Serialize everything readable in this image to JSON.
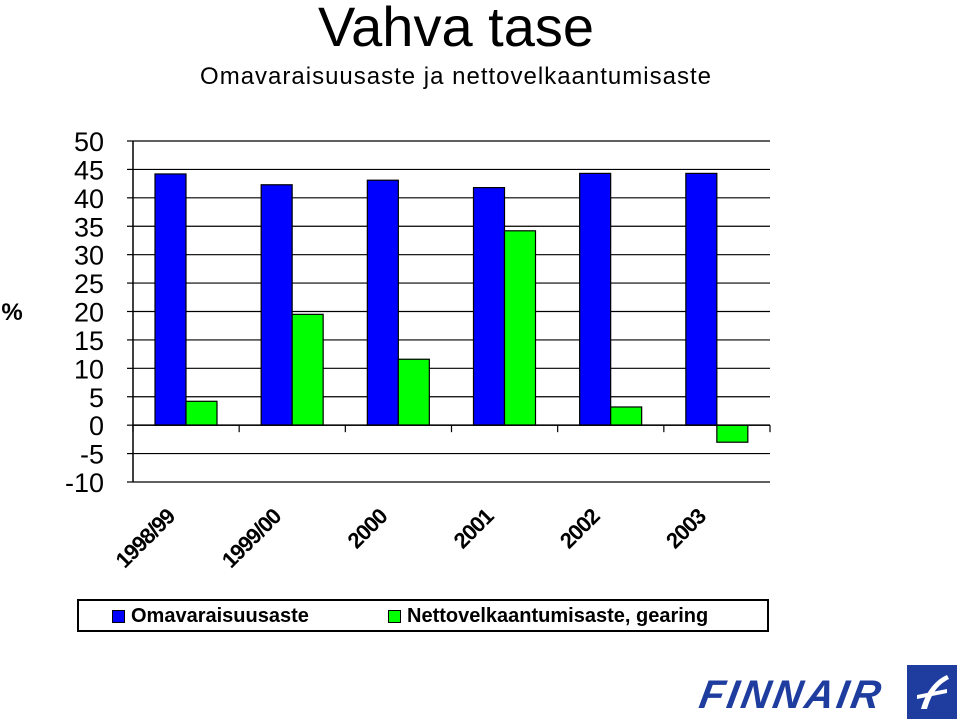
{
  "title": "Vahva tase",
  "subtitle": "Omavaraisuusaste ja nettovelkaantumisaste",
  "y_unit_label": "%",
  "logo_text": "FINNAIR",
  "chart_data": {
    "type": "bar",
    "categories": [
      "1998/99",
      "1999/00",
      "2000",
      "2001",
      "2002",
      "2003"
    ],
    "series": [
      {
        "name": "Omavaraisuusaste",
        "values": [
          44.2,
          42.3,
          43.1,
          41.8,
          44.3,
          44.3
        ],
        "color": "#0000ff"
      },
      {
        "name": "Nettovelkaantumisaste, gearing",
        "values": [
          4.2,
          19.5,
          11.6,
          34.2,
          3.2,
          -3.0
        ],
        "color": "#00ff00"
      }
    ],
    "ylim": [
      -10,
      50
    ],
    "yticks": [
      50,
      45,
      40,
      35,
      30,
      25,
      20,
      15,
      10,
      5,
      0,
      -5,
      -10
    ],
    "grid": true,
    "legend_position": "bottom"
  }
}
